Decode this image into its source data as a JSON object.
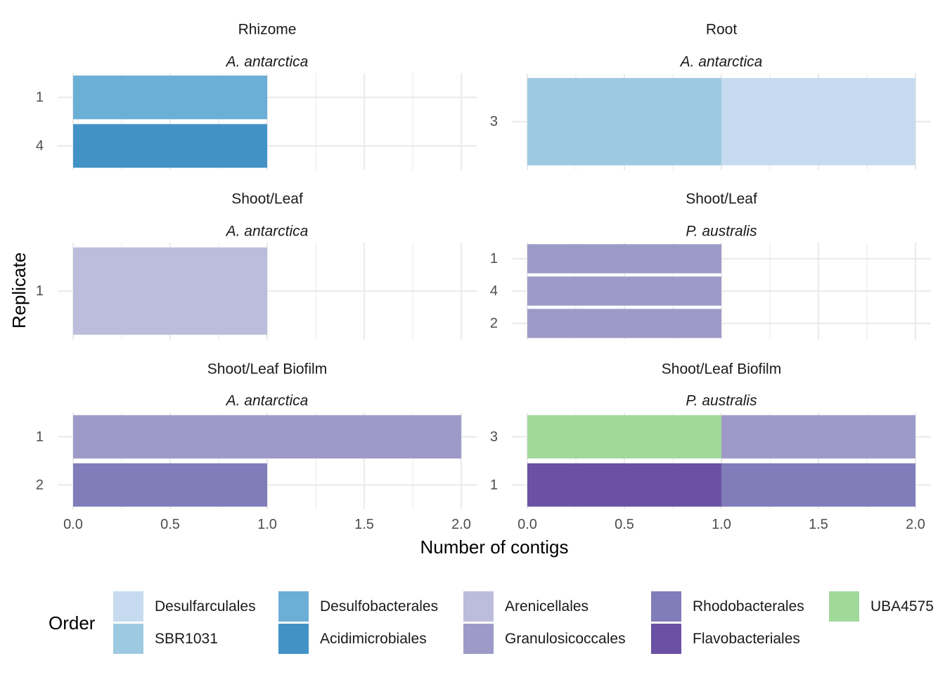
{
  "chart_data": {
    "type": "bar",
    "orientation": "horizontal",
    "stacked": true,
    "xlabel": "Number of contigs",
    "ylabel": "Replicate",
    "xlim": [
      0,
      2
    ],
    "x_ticks": [
      "0.0",
      "0.5",
      "1.0",
      "1.5",
      "2.0"
    ],
    "grid": true,
    "legend": {
      "title": "Order",
      "position": "bottom",
      "entries": [
        {
          "name": "Desulfarculales",
          "color": "#c6dbef"
        },
        {
          "name": "SBR1031",
          "color": "#9ecae1"
        },
        {
          "name": "Desulfobacterales",
          "color": "#6baed6"
        },
        {
          "name": "Acidimicrobiales",
          "color": "#4292c6"
        },
        {
          "name": "Arenicellales",
          "color": "#bcbddc"
        },
        {
          "name": "Granulosicoccales",
          "color": "#9e9ac8"
        },
        {
          "name": "Rhodobacterales",
          "color": "#807dba"
        },
        {
          "name": "Flavobacteriales",
          "color": "#6a51a3"
        },
        {
          "name": "UBA4575",
          "color": "#a1d99b"
        }
      ]
    },
    "panels": [
      {
        "tissue": "Rhizome",
        "species": "A. antarctica",
        "replicates": [
          "1",
          "4"
        ],
        "bars": [
          {
            "replicate": "1",
            "segments": [
              {
                "order": "Desulfobacterales",
                "value": 1
              }
            ]
          },
          {
            "replicate": "4",
            "segments": [
              {
                "order": "Acidimicrobiales",
                "value": 1
              }
            ]
          }
        ]
      },
      {
        "tissue": "Root",
        "species": "A. antarctica",
        "replicates": [
          "3"
        ],
        "bars": [
          {
            "replicate": "3",
            "segments": [
              {
                "order": "SBR1031",
                "value": 1
              },
              {
                "order": "Desulfarculales",
                "value": 1
              }
            ]
          }
        ]
      },
      {
        "tissue": "Shoot/Leaf",
        "species": "A. antarctica",
        "replicates": [
          "1"
        ],
        "bars": [
          {
            "replicate": "1",
            "segments": [
              {
                "order": "Arenicellales",
                "value": 1
              }
            ]
          }
        ]
      },
      {
        "tissue": "Shoot/Leaf",
        "species": "P. australis",
        "replicates": [
          "1",
          "4",
          "2"
        ],
        "bars": [
          {
            "replicate": "1",
            "segments": [
              {
                "order": "Granulosicoccales",
                "value": 1
              }
            ]
          },
          {
            "replicate": "4",
            "segments": [
              {
                "order": "Granulosicoccales",
                "value": 1
              }
            ]
          },
          {
            "replicate": "2",
            "segments": [
              {
                "order": "Granulosicoccales",
                "value": 1
              }
            ]
          }
        ]
      },
      {
        "tissue": "Shoot/Leaf Biofilm",
        "species": "A. antarctica",
        "replicates": [
          "1",
          "2"
        ],
        "bars": [
          {
            "replicate": "1",
            "segments": [
              {
                "order": "Granulosicoccales",
                "value": 2
              }
            ]
          },
          {
            "replicate": "2",
            "segments": [
              {
                "order": "Rhodobacterales",
                "value": 1
              }
            ]
          }
        ]
      },
      {
        "tissue": "Shoot/Leaf Biofilm",
        "species": "P. australis",
        "replicates": [
          "3",
          "1"
        ],
        "bars": [
          {
            "replicate": "3",
            "segments": [
              {
                "order": "UBA4575",
                "value": 1
              },
              {
                "order": "Granulosicoccales",
                "value": 1
              }
            ]
          },
          {
            "replicate": "1",
            "segments": [
              {
                "order": "Flavobacteriales",
                "value": 1
              },
              {
                "order": "Rhodobacterales",
                "value": 1
              }
            ]
          }
        ]
      }
    ]
  }
}
